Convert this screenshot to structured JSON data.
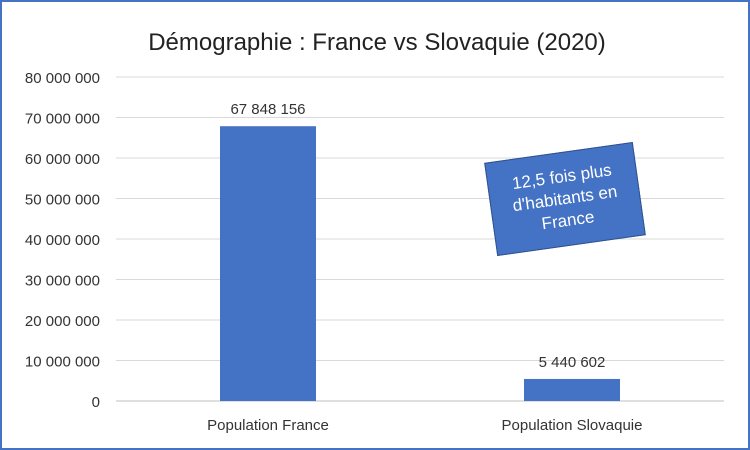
{
  "chart_data": {
    "type": "bar",
    "title": "Démographie : France vs Slovaquie (2020)",
    "categories": [
      "Population France",
      "Population Slovaquie"
    ],
    "values": [
      67848156,
      5440602
    ],
    "data_labels": [
      "67 848 156",
      "5 440 602"
    ],
    "ylim": [
      0,
      80000000
    ],
    "yticks": [
      0,
      10000000,
      20000000,
      30000000,
      40000000,
      50000000,
      60000000,
      70000000,
      80000000
    ],
    "ytick_labels": [
      "0",
      "10 000 000",
      "20 000 000",
      "30 000 000",
      "40 000 000",
      "50 000 000",
      "60 000 000",
      "70 000 000",
      "80 000 000"
    ],
    "grid": true,
    "bar_color": "#4472C4",
    "annotation": "12,5 fois plus d'habitants en France"
  }
}
